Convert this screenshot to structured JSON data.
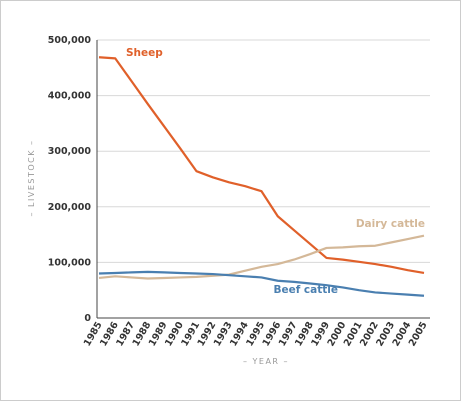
{
  "chart_data": {
    "type": "line",
    "x": [
      1985,
      1986,
      1987,
      1988,
      1989,
      1990,
      1991,
      1992,
      1993,
      1994,
      1995,
      1996,
      1997,
      1998,
      1999,
      2000,
      2001,
      2002,
      2003,
      2004,
      2005
    ],
    "xlim": [
      1985,
      2005
    ],
    "ylim": [
      0,
      500000
    ],
    "yticks": [
      0,
      {
        "value": 100000,
        "label": "100,000"
      },
      {
        "value": 200000,
        "label": "200,000"
      },
      {
        "value": 300000,
        "label": "300,000"
      },
      {
        "value": 400000,
        "label": "400,000"
      },
      {
        "value": 500000,
        "label": "500,000"
      }
    ],
    "xlabel": "– YEAR –",
    "ylabel": "– LIVESTOCK –",
    "grid": true,
    "series": [
      {
        "name": "Sheep",
        "color": "#e0602a",
        "values": [
          469000,
          467000,
          426000,
          385000,
          345000,
          305000,
          264000,
          253000,
          244000,
          237000,
          228000,
          183000,
          158000,
          133000,
          108000,
          105000,
          101000,
          97000,
          92000,
          86000,
          81000
        ]
      },
      {
        "name": "Dairy cattle",
        "color": "#d4b898",
        "values": [
          72000,
          75000,
          73000,
          71000,
          72000,
          73000,
          74000,
          76000,
          78000,
          85000,
          92000,
          97000,
          105000,
          115000,
          126000,
          127000,
          129000,
          130000,
          136000,
          142000,
          148000
        ]
      },
      {
        "name": "Beef cattle",
        "color": "#4a7fb0",
        "values": [
          80000,
          81000,
          82000,
          83000,
          82000,
          81000,
          80000,
          79000,
          77000,
          75000,
          73000,
          67000,
          65000,
          62000,
          59000,
          55000,
          50000,
          46000,
          44000,
          42000,
          40000
        ]
      }
    ]
  }
}
